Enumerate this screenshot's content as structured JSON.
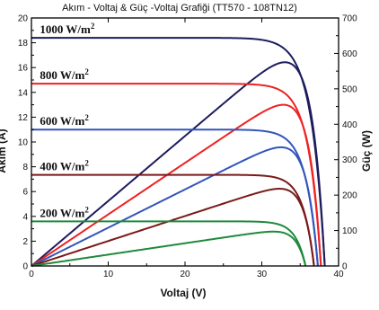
{
  "chart_data": {
    "type": "line",
    "title": "Akım - Voltaj & Güç -Voltaj Grafiği (TT570 - 108TN12)",
    "xlabel": "Voltaj (V)",
    "ylabel_left": "Akım (A)",
    "ylabel_right": "Güç (W)",
    "xlim": [
      0,
      40
    ],
    "ylim_left": [
      0,
      20
    ],
    "ylim_right": [
      0,
      700
    ],
    "x_ticks": [
      0,
      10,
      20,
      30,
      40
    ],
    "y_left_ticks": [
      0,
      2,
      4,
      6,
      8,
      10,
      12,
      14,
      16,
      18,
      20
    ],
    "y_right_ticks": [
      0,
      100,
      200,
      300,
      400,
      500,
      600,
      700
    ],
    "grid": false,
    "series": [
      {
        "name": "1000 W/m²",
        "color": "#1c1c5e",
        "isc": 18.4,
        "voc": 38.2,
        "vmp": 33.0,
        "pmax": 575
      },
      {
        "name": "800 W/m²",
        "color": "#ee2222",
        "isc": 14.7,
        "voc": 37.7,
        "vmp": 32.8,
        "pmax": 455
      },
      {
        "name": "600 W/m²",
        "color": "#3355bb",
        "isc": 11.0,
        "voc": 37.3,
        "vmp": 32.5,
        "pmax": 335
      },
      {
        "name": "400 W/m²",
        "color": "#7a1a1a",
        "isc": 7.35,
        "voc": 36.8,
        "vmp": 32.3,
        "pmax": 218
      },
      {
        "name": "200 W/m²",
        "color": "#1e8a3c",
        "isc": 3.6,
        "voc": 35.7,
        "vmp": 31.5,
        "pmax": 97
      }
    ],
    "irradiance_labels": [
      {
        "base": "1000 W/m",
        "sup": "2"
      },
      {
        "base": "800 W/m",
        "sup": "2"
      },
      {
        "base": "600 W/m",
        "sup": "2"
      },
      {
        "base": "400 W/m",
        "sup": "2"
      },
      {
        "base": "200 W/m",
        "sup": "2"
      }
    ]
  }
}
